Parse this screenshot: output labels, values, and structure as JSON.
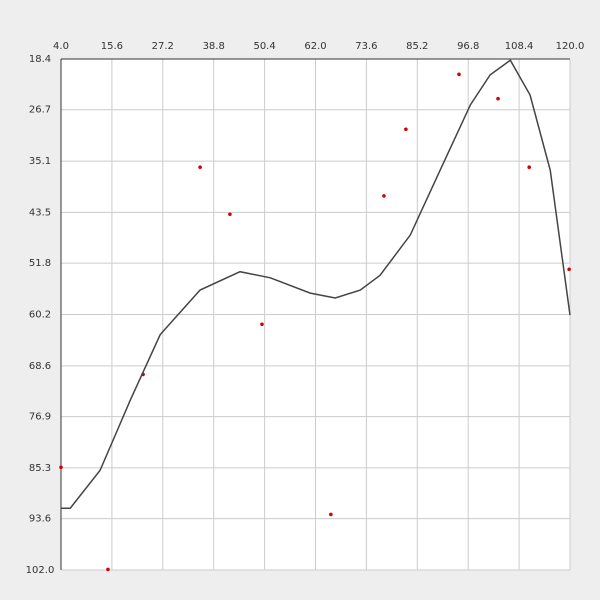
{
  "chart_data": {
    "type": "scatter",
    "xlim": [
      4.0,
      120.0
    ],
    "xticks": [
      {
        "value": 4.0,
        "label": "4.0"
      },
      15.6,
      27.2,
      38.8,
      50.4,
      {
        "value": 62.0,
        "label": "62.0"
      },
      73.6,
      85.2,
      96.8,
      108.4,
      {
        "value": 120.0,
        "label": "120.0"
      }
    ],
    "ylim": [
      18.4,
      102.0
    ],
    "yticks": [
      18.4,
      26.7,
      35.1,
      43.5,
      51.8,
      60.2,
      68.6,
      76.9,
      85.3,
      93.6,
      {
        "value": 102.0,
        "label": "102.0"
      }
    ],
    "grid": true,
    "series": [
      {
        "type": "scatter",
        "color": "#d40000",
        "x": [
          4.0,
          14.7,
          22.7,
          35.7,
          42.5,
          49.8,
          65.5,
          77.6,
          82.6,
          94.7,
          103.6,
          110.7,
          119.8
        ],
        "values": [
          85.2,
          101.9,
          70.0,
          36.1,
          43.8,
          61.8,
          92.9,
          40.8,
          29.9,
          20.9,
          24.9,
          36.1,
          52.8
        ]
      },
      {
        "type": "line",
        "color": "#444444",
        "x": [
          4.0,
          6.1,
          12.9,
          19.8,
          26.6,
          35.7,
          44.8,
          51.7,
          60.8,
          66.5,
          72.2,
          76.7,
          83.6,
          90.4,
          97.3,
          101.8,
          106.4,
          110.9,
          115.5,
          120.0
        ],
        "values": [
          91.9,
          91.9,
          85.7,
          74.2,
          63.5,
          56.2,
          53.2,
          54.2,
          56.7,
          57.5,
          56.2,
          53.8,
          47.2,
          36.6,
          25.9,
          21.0,
          18.6,
          24.3,
          36.6,
          60.3
        ]
      }
    ]
  }
}
